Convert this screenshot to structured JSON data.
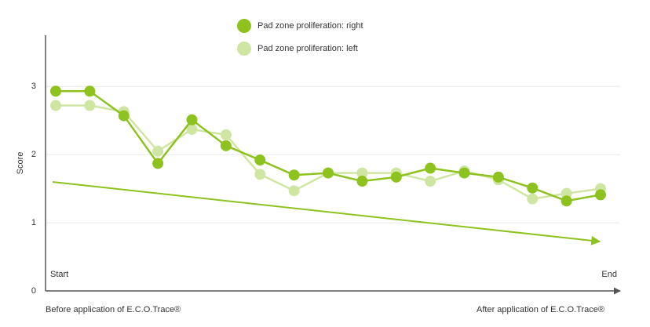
{
  "chart_data": {
    "type": "line",
    "y_label": "Score",
    "categories": [
      "Start",
      null,
      null,
      null,
      null,
      null,
      null,
      null,
      null,
      null,
      null,
      null,
      null,
      null,
      null,
      null,
      "End"
    ],
    "series": [
      {
        "name": "Pad zone proliferation: right",
        "color": "#8dc21f",
        "values": [
          2.93,
          2.93,
          2.57,
          1.87,
          2.51,
          2.13,
          1.92,
          1.7,
          1.73,
          1.61,
          1.67,
          1.8,
          1.73,
          1.67,
          1.51,
          1.32,
          1.41
        ]
      },
      {
        "name": "Pad zone proliferation: left",
        "color": "#cfe6a3",
        "values": [
          2.72,
          2.72,
          2.63,
          2.05,
          2.37,
          2.29,
          1.71,
          1.47,
          1.73,
          1.73,
          1.73,
          1.61,
          1.76,
          1.63,
          1.35,
          1.43,
          1.5
        ]
      }
    ],
    "annotations": [
      "Before application of E.C.O.Trace®",
      "After application of E.C.O.Trace®"
    ],
    "ylim": [
      0,
      3.75
    ],
    "yticks": [
      0,
      1,
      2,
      3
    ],
    "grid": true
  }
}
